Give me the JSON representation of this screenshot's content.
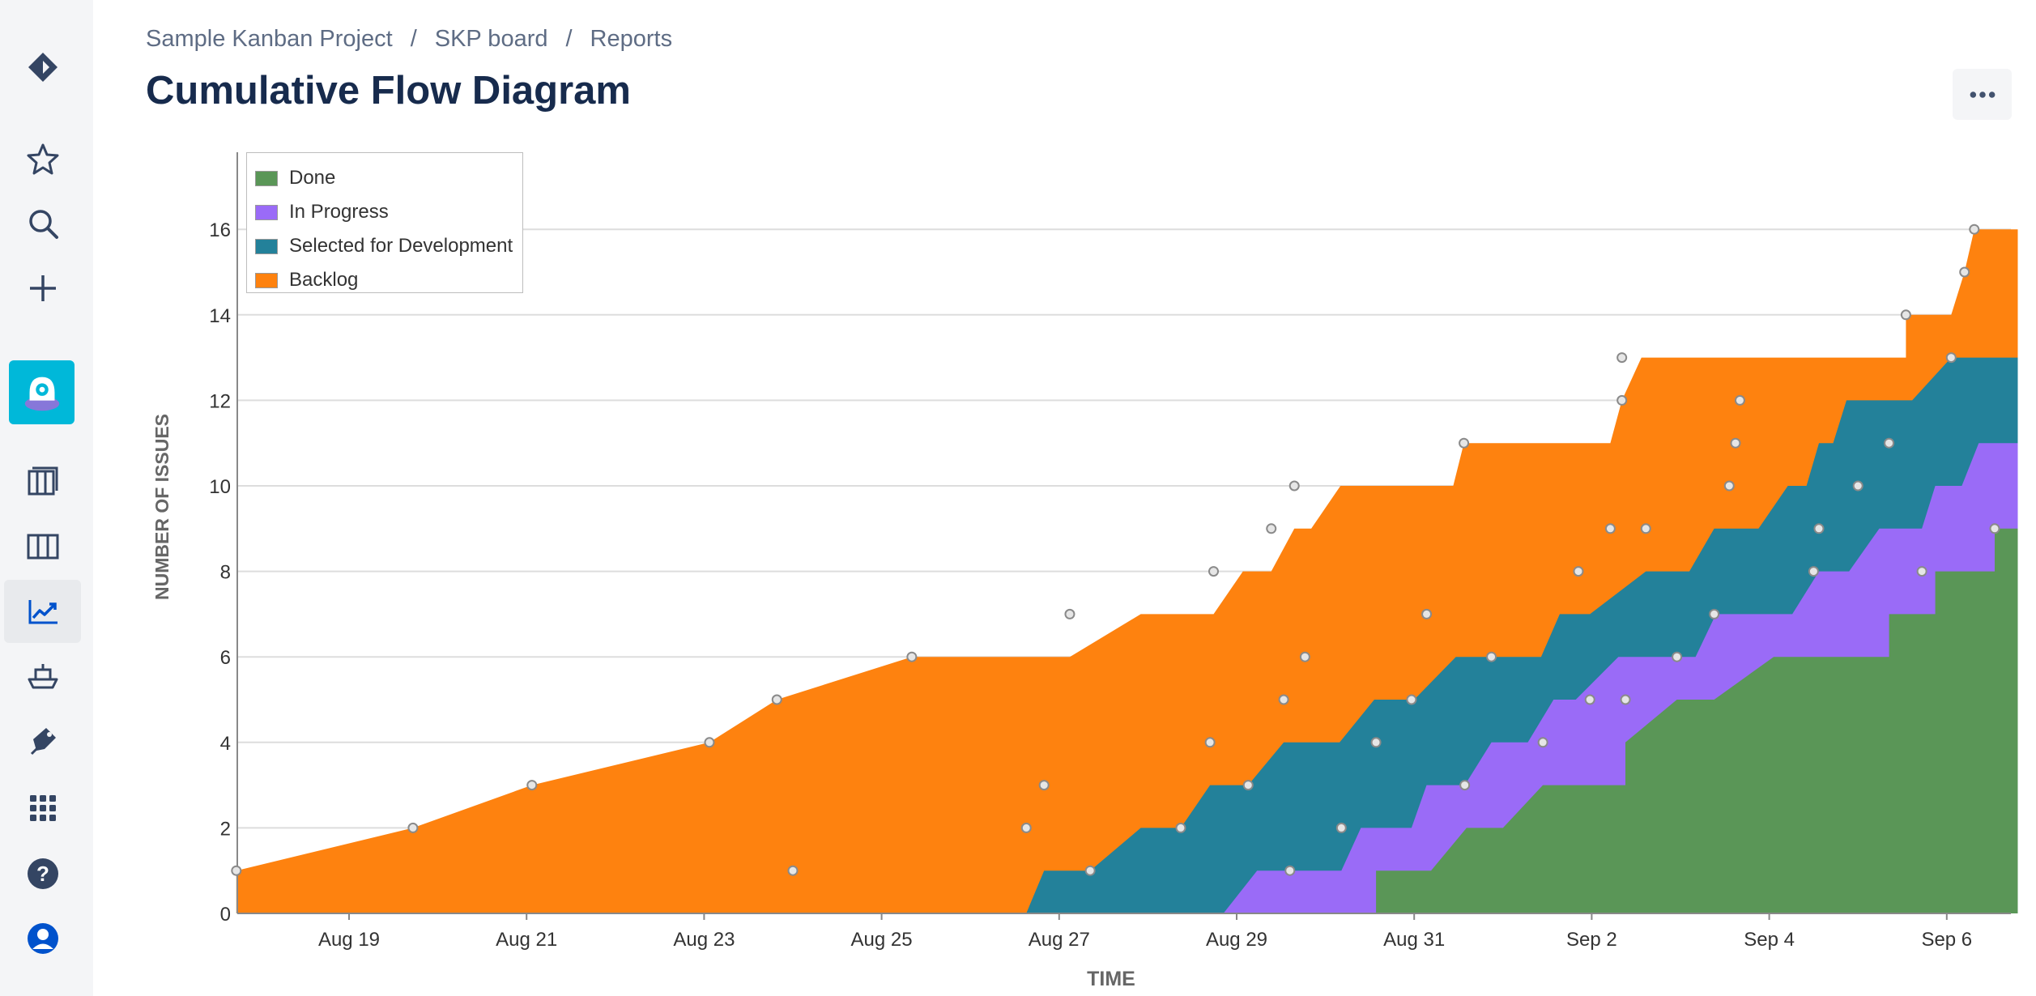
{
  "breadcrumb": {
    "project": "Sample Kanban Project",
    "board": "SKP board",
    "section": "Reports",
    "separator": "/"
  },
  "page": {
    "title": "Cumulative Flow Diagram"
  },
  "sidebar": {
    "items": [
      {
        "icon": "jira-logo-icon"
      },
      {
        "icon": "star-icon"
      },
      {
        "icon": "search-icon"
      },
      {
        "icon": "plus-icon"
      },
      {
        "icon": "project-avatar-icon"
      },
      {
        "icon": "backlog-icon"
      },
      {
        "icon": "board-icon"
      },
      {
        "icon": "reports-icon"
      },
      {
        "icon": "releases-icon"
      },
      {
        "icon": "pages-icon"
      },
      {
        "icon": "apps-grid-icon"
      },
      {
        "icon": "help-icon"
      },
      {
        "icon": "profile-icon"
      }
    ]
  },
  "colors": {
    "done": "#5a9657",
    "in_progress": "#9a6bf7",
    "selected": "#23819a",
    "backlog": "#fe820f",
    "grid": "#dddddd",
    "axis_text": "#333333",
    "title": "#172b4d"
  },
  "chart_data": {
    "type": "area",
    "stacked": true,
    "title": "Cumulative Flow Diagram",
    "xlabel": "TIME",
    "ylabel": "NUMBER OF ISSUES",
    "ylim": [
      0,
      17.8
    ],
    "xlim": [
      -1.27,
      18.8
    ],
    "grid": true,
    "legend_position": "top-left",
    "x_unit": "days since Aug 19",
    "x_ticks": [
      {
        "label": "Aug 19",
        "x": 0
      },
      {
        "label": "Aug 21",
        "x": 2
      },
      {
        "label": "Aug 23",
        "x": 4
      },
      {
        "label": "Aug 25",
        "x": 6
      },
      {
        "label": "Aug 27",
        "x": 8
      },
      {
        "label": "Aug 29",
        "x": 10
      },
      {
        "label": "Aug 31",
        "x": 12
      },
      {
        "label": "Sep 2",
        "x": 14
      },
      {
        "label": "Sep 4",
        "x": 16
      },
      {
        "label": "Sep 6",
        "x": 18
      }
    ],
    "y_ticks": [
      0,
      2,
      4,
      6,
      8,
      10,
      12,
      14,
      16
    ],
    "legend": [
      "Done",
      "In Progress",
      "Selected for Development",
      "Backlog"
    ],
    "series": [
      {
        "name": "Done",
        "color": "#5a9657",
        "points": [
          [
            -1.27,
            0
          ],
          [
            11.57,
            0
          ],
          [
            11.57,
            1
          ],
          [
            12.19,
            1
          ],
          [
            12.59,
            2
          ],
          [
            13.0,
            2
          ],
          [
            13.45,
            3
          ],
          [
            14.38,
            3
          ],
          [
            14.38,
            4
          ],
          [
            14.96,
            5
          ],
          [
            15.38,
            5
          ],
          [
            16.05,
            6
          ],
          [
            17.35,
            6
          ],
          [
            17.35,
            7
          ],
          [
            17.87,
            7
          ],
          [
            17.87,
            8
          ],
          [
            18.54,
            8
          ],
          [
            18.54,
            9
          ],
          [
            18.8,
            9
          ]
        ]
      },
      {
        "name": "In Progress",
        "color": "#9a6bf7",
        "points": [
          [
            -1.27,
            0
          ],
          [
            9.85,
            0
          ],
          [
            10.23,
            1
          ],
          [
            11.18,
            1
          ],
          [
            11.4,
            2
          ],
          [
            11.97,
            2
          ],
          [
            12.14,
            3
          ],
          [
            12.57,
            3
          ],
          [
            12.87,
            4
          ],
          [
            13.28,
            4
          ],
          [
            13.57,
            5
          ],
          [
            13.82,
            5
          ],
          [
            14.3,
            6
          ],
          [
            15.17,
            6
          ],
          [
            15.4,
            7
          ],
          [
            16.26,
            7
          ],
          [
            16.56,
            8
          ],
          [
            16.9,
            8
          ],
          [
            17.24,
            9
          ],
          [
            17.72,
            9
          ],
          [
            17.87,
            10
          ],
          [
            18.17,
            10
          ],
          [
            18.36,
            11
          ],
          [
            18.8,
            11
          ]
        ]
      },
      {
        "name": "Selected for Development",
        "color": "#23819a",
        "points": [
          [
            -1.27,
            0
          ],
          [
            7.63,
            0
          ],
          [
            7.83,
            1
          ],
          [
            8.35,
            1
          ],
          [
            8.92,
            2
          ],
          [
            9.37,
            2
          ],
          [
            9.7,
            3
          ],
          [
            10.13,
            3
          ],
          [
            10.53,
            4
          ],
          [
            11.16,
            4
          ],
          [
            11.55,
            5
          ],
          [
            12.0,
            5
          ],
          [
            12.47,
            6
          ],
          [
            13.43,
            6
          ],
          [
            13.64,
            7
          ],
          [
            13.98,
            7
          ],
          [
            14.61,
            8
          ],
          [
            15.1,
            8
          ],
          [
            15.38,
            9
          ],
          [
            15.88,
            9
          ],
          [
            16.21,
            10
          ],
          [
            16.42,
            10
          ],
          [
            16.56,
            11
          ],
          [
            16.72,
            11
          ],
          [
            16.87,
            12
          ],
          [
            17.61,
            12
          ],
          [
            18.05,
            13
          ],
          [
            18.8,
            13
          ]
        ]
      },
      {
        "name": "Backlog",
        "color": "#fe820f",
        "points": [
          [
            -1.27,
            1
          ],
          [
            0.72,
            2
          ],
          [
            2.06,
            3
          ],
          [
            4.06,
            4
          ],
          [
            4.82,
            5
          ],
          [
            6.34,
            6
          ],
          [
            8.12,
            6
          ],
          [
            8.92,
            7
          ],
          [
            9.74,
            7
          ],
          [
            10.07,
            8
          ],
          [
            10.39,
            8
          ],
          [
            10.65,
            9
          ],
          [
            10.84,
            9
          ],
          [
            11.17,
            10
          ],
          [
            12.44,
            10
          ],
          [
            12.56,
            11
          ],
          [
            14.21,
            11
          ],
          [
            14.34,
            12
          ],
          [
            14.56,
            13
          ],
          [
            17.54,
            13
          ],
          [
            17.54,
            14
          ],
          [
            18.05,
            14
          ],
          [
            18.2,
            15
          ],
          [
            18.31,
            16
          ],
          [
            18.8,
            16
          ]
        ]
      }
    ],
    "markers": [
      [
        -1.27,
        1
      ],
      [
        0.72,
        2
      ],
      [
        2.06,
        3
      ],
      [
        4.06,
        4
      ],
      [
        4.82,
        5
      ],
      [
        6.34,
        6
      ],
      [
        8.12,
        7
      ],
      [
        9.74,
        8
      ],
      [
        10.39,
        9
      ],
      [
        10.65,
        10
      ],
      [
        12.56,
        11
      ],
      [
        14.34,
        13
      ],
      [
        14.34,
        12
      ],
      [
        17.54,
        14
      ],
      [
        18.2,
        15
      ],
      [
        18.31,
        16
      ],
      [
        18.05,
        13
      ],
      [
        5.0,
        1
      ],
      [
        7.63,
        2
      ],
      [
        7.83,
        3
      ],
      [
        8.35,
        1
      ],
      [
        9.37,
        2
      ],
      [
        9.7,
        4
      ],
      [
        10.53,
        5
      ],
      [
        10.13,
        3
      ],
      [
        10.77,
        6
      ],
      [
        10.6,
        1
      ],
      [
        11.57,
        4
      ],
      [
        11.18,
        2
      ],
      [
        11.97,
        5
      ],
      [
        12.14,
        7
      ],
      [
        12.57,
        3
      ],
      [
        12.87,
        6
      ],
      [
        13.45,
        4
      ],
      [
        13.85,
        8
      ],
      [
        14.21,
        9
      ],
      [
        14.38,
        5
      ],
      [
        14.61,
        9
      ],
      [
        14.96,
        6
      ],
      [
        15.38,
        7
      ],
      [
        15.55,
        10
      ],
      [
        15.62,
        11
      ],
      [
        15.67,
        12
      ],
      [
        16.56,
        9
      ],
      [
        16.5,
        8
      ],
      [
        17.0,
        10
      ],
      [
        17.35,
        11
      ],
      [
        17.72,
        8
      ],
      [
        18.54,
        9
      ],
      [
        13.98,
        5
      ]
    ]
  }
}
